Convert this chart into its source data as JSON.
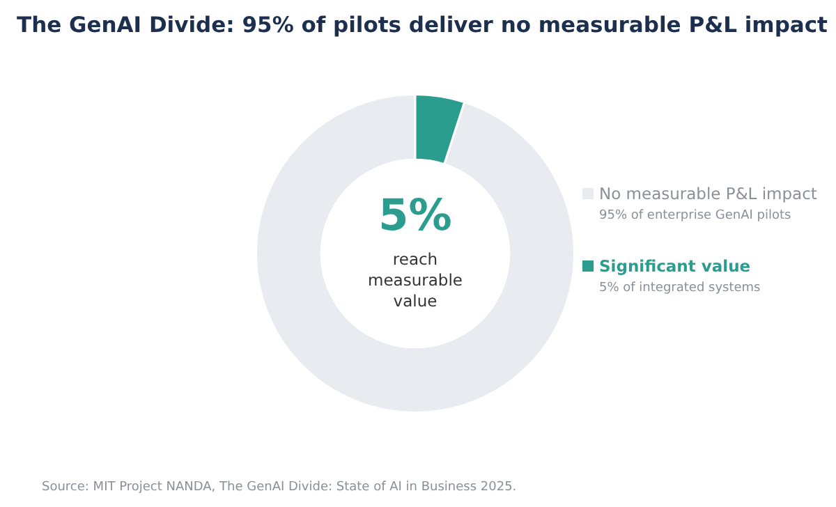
{
  "chart_data": {
    "type": "donut",
    "title": "The GenAI Divide: 95% of pilots deliver no measurable P&L impact",
    "categories": [
      "No measurable P&L impact",
      "Significant value"
    ],
    "values": [
      95,
      5
    ],
    "colors": [
      "#e8ecf0",
      "#2a9d8f"
    ],
    "legend": "right",
    "annotations": [
      "5%",
      "reach measurable value",
      "95% of enterprise GenAI pilots",
      "5% of integrated systems",
      "Source: MIT Project NANDA, The GenAI Divide: State of AI in Business 2025."
    ]
  }
}
